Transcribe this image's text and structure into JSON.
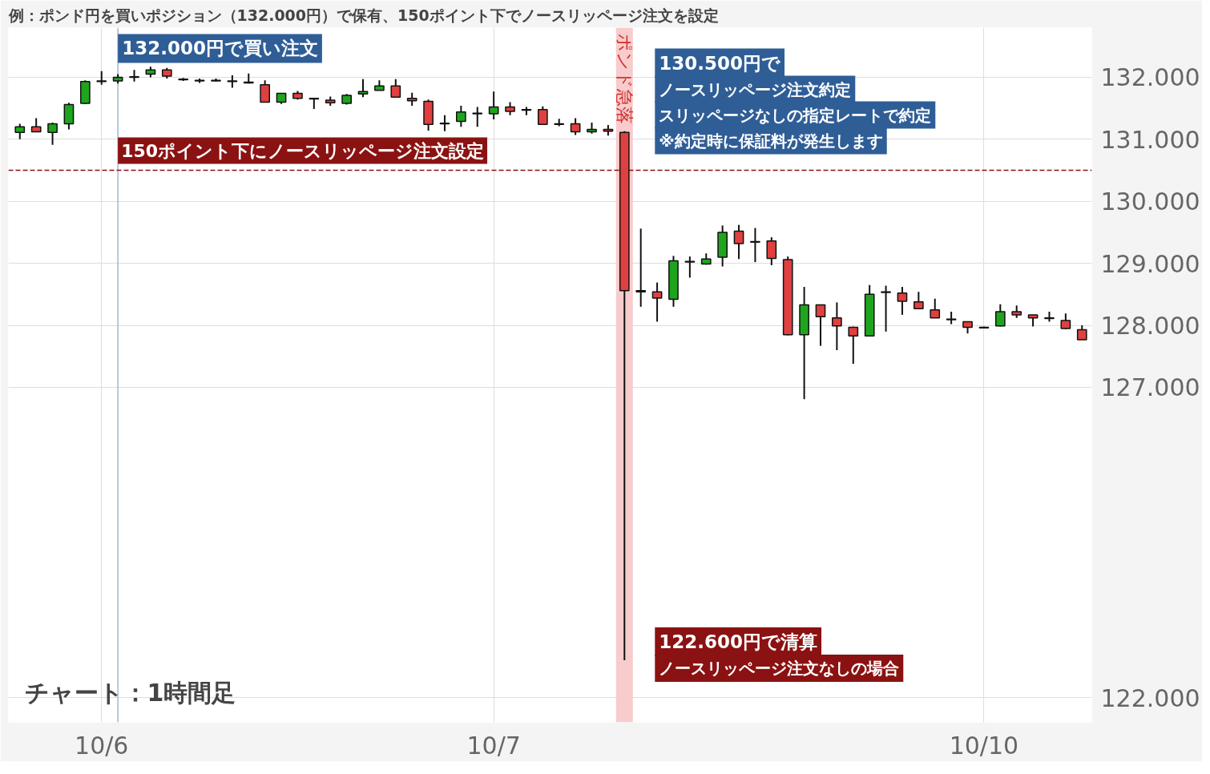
{
  "chart_data": {
    "type": "candlestick",
    "title": "例：ポンド円を買いポジション（132.000円）で保有、150ポイント下でノースリッページ注文を設定",
    "categories": [
      null,
      null,
      null,
      null,
      null,
      "10/6",
      null,
      null,
      null,
      null,
      null,
      null,
      null,
      null,
      null,
      null,
      null,
      null,
      null,
      null,
      null,
      null,
      null,
      null,
      null,
      null,
      null,
      null,
      null,
      "10/7",
      null,
      null,
      null,
      null,
      null,
      null,
      null,
      null,
      null,
      null,
      null,
      null,
      null,
      null,
      null,
      null,
      null,
      null,
      null,
      null,
      null,
      null,
      null,
      null,
      null,
      null,
      null,
      null,
      null,
      "10/10",
      null,
      null,
      null,
      null,
      null,
      null
    ],
    "ohlc": [
      [
        131.11,
        131.25,
        131.0,
        131.2
      ],
      [
        131.2,
        131.34,
        131.12,
        131.12
      ],
      [
        131.11,
        131.27,
        130.91,
        131.25
      ],
      [
        131.25,
        131.59,
        131.16,
        131.56
      ],
      [
        131.58,
        131.95,
        131.57,
        131.93
      ],
      [
        131.93,
        132.1,
        131.88,
        131.94
      ],
      [
        131.94,
        132.05,
        131.9,
        132.0
      ],
      [
        132.0,
        132.12,
        131.93,
        132.01
      ],
      [
        132.05,
        132.17,
        132.0,
        132.12
      ],
      [
        132.12,
        132.15,
        131.98,
        132.02
      ],
      [
        131.97,
        131.99,
        131.94,
        131.96
      ],
      [
        131.95,
        131.98,
        131.91,
        131.94
      ],
      [
        131.94,
        131.98,
        131.93,
        131.95
      ],
      [
        131.94,
        132.03,
        131.83,
        131.93
      ],
      [
        131.92,
        132.06,
        131.9,
        131.91
      ],
      [
        131.88,
        131.95,
        131.6,
        131.6
      ],
      [
        131.6,
        131.74,
        131.57,
        131.74
      ],
      [
        131.74,
        131.78,
        131.64,
        131.66
      ],
      [
        131.66,
        131.66,
        131.49,
        131.65
      ],
      [
        131.63,
        131.69,
        131.54,
        131.59
      ],
      [
        131.58,
        131.73,
        131.56,
        131.71
      ],
      [
        131.73,
        131.97,
        131.68,
        131.77
      ],
      [
        131.79,
        131.95,
        131.79,
        131.86
      ],
      [
        131.86,
        131.97,
        131.68,
        131.68
      ],
      [
        131.66,
        131.75,
        131.54,
        131.62
      ],
      [
        131.61,
        131.64,
        131.14,
        131.24
      ],
      [
        131.26,
        131.39,
        131.13,
        131.25
      ],
      [
        131.29,
        131.54,
        131.2,
        131.44
      ],
      [
        131.41,
        131.52,
        131.2,
        131.42
      ],
      [
        131.41,
        131.77,
        131.32,
        131.52
      ],
      [
        131.52,
        131.6,
        131.39,
        131.45
      ],
      [
        131.48,
        131.52,
        131.39,
        131.47
      ],
      [
        131.48,
        131.53,
        131.24,
        131.24
      ],
      [
        131.25,
        131.33,
        131.21,
        131.24
      ],
      [
        131.25,
        131.34,
        131.07,
        131.12
      ],
      [
        131.12,
        131.27,
        131.09,
        131.16
      ],
      [
        131.16,
        131.23,
        131.06,
        131.13
      ],
      [
        131.11,
        131.13,
        122.6,
        128.56
      ],
      [
        128.56,
        129.56,
        128.3,
        128.54
      ],
      [
        128.54,
        128.69,
        128.06,
        128.44
      ],
      [
        128.42,
        129.12,
        128.3,
        129.04
      ],
      [
        129.03,
        129.11,
        128.77,
        129.02
      ],
      [
        128.99,
        129.16,
        128.98,
        129.07
      ],
      [
        129.1,
        129.61,
        128.95,
        129.5
      ],
      [
        129.52,
        129.62,
        129.07,
        129.32
      ],
      [
        129.35,
        129.57,
        129.02,
        129.34
      ],
      [
        129.36,
        129.42,
        128.97,
        129.08
      ],
      [
        129.06,
        129.11,
        127.84,
        127.85
      ],
      [
        127.85,
        128.62,
        126.81,
        128.33
      ],
      [
        128.33,
        128.33,
        127.67,
        128.14
      ],
      [
        128.12,
        128.37,
        127.6,
        127.99
      ],
      [
        127.97,
        127.98,
        127.38,
        127.83
      ],
      [
        127.83,
        128.65,
        127.82,
        128.5
      ],
      [
        128.53,
        128.64,
        127.9,
        128.54
      ],
      [
        128.52,
        128.62,
        128.17,
        128.39
      ],
      [
        128.38,
        128.54,
        128.27,
        128.27
      ],
      [
        128.25,
        128.43,
        128.12,
        128.12
      ],
      [
        128.1,
        128.22,
        128.02,
        128.09
      ],
      [
        128.06,
        128.06,
        127.87,
        127.97
      ],
      [
        127.97,
        127.98,
        127.95,
        127.96
      ],
      [
        127.99,
        128.34,
        127.98,
        128.22
      ],
      [
        128.22,
        128.32,
        128.12,
        128.17
      ],
      [
        128.17,
        128.17,
        127.98,
        128.12
      ],
      [
        128.12,
        128.22,
        128.06,
        128.11
      ],
      [
        128.08,
        128.19,
        127.94,
        127.95
      ],
      [
        127.93,
        128.0,
        127.77,
        127.77
      ]
    ],
    "colors": [
      "#1ea51e",
      "#e04040",
      "#1ea51e",
      "#1ea51e",
      "#1ea51e",
      "#1ea51e",
      "#1ea51e",
      "#1ea51e",
      "#1ea51e",
      "#e04040",
      "#e04040",
      "#e04040",
      "#1ea51e",
      "#e04040",
      "#e04040",
      "#e04040",
      "#1ea51e",
      "#e04040",
      "#e04040",
      "#e04040",
      "#1ea51e",
      "#1ea51e",
      "#1ea51e",
      "#e04040",
      "#e04040",
      "#e04040",
      "#e04040",
      "#1ea51e",
      "#1ea51e",
      "#1ea51e",
      "#e04040",
      "#e04040",
      "#e04040",
      "#e04040",
      "#e04040",
      "#1ea51e",
      "#e04040",
      "#e04040",
      "#e04040",
      "#e04040",
      "#1ea51e",
      "#e04040",
      "#1ea51e",
      "#1ea51e",
      "#e04040",
      "#e04040",
      "#e04040",
      "#e04040",
      "#1ea51e",
      "#e04040",
      "#e04040",
      "#e04040",
      "#1ea51e",
      "#1ea51e",
      "#e04040",
      "#e04040",
      "#e04040",
      "#e04040",
      "#e04040",
      "#e04040",
      "#1ea51e",
      "#e04040",
      "#e04040",
      "#e04040",
      "#e04040",
      "#e04040"
    ],
    "ylim": [
      121.6,
      132.8
    ],
    "yticks": [
      {
        "value": 122,
        "label": "122.000"
      },
      {
        "value": 127,
        "label": "127.000"
      },
      {
        "value": 128,
        "label": "128.000"
      },
      {
        "value": 129,
        "label": "129.000"
      },
      {
        "value": 130,
        "label": "130.000"
      },
      {
        "value": 131,
        "label": "131.000"
      },
      {
        "value": 132,
        "label": "132.000"
      }
    ],
    "grid": true,
    "ref_lines": [
      {
        "axis": "y",
        "value": 130.5,
        "label": "150ポイント下にノースリッページ注文設定",
        "color": "#8b1212",
        "line_style": "dashed"
      }
    ],
    "annotations": [
      "チャート：1時間足",
      "132.000円で買い注文",
      "130.500円で",
      "ノースリッページ注文約定",
      "スリッページなしの指定レートで約定",
      "※約定時に保証料が発生します",
      "122.600円で清算",
      "ノースリッページ注文なしの場合",
      "ポンド急落"
    ]
  }
}
